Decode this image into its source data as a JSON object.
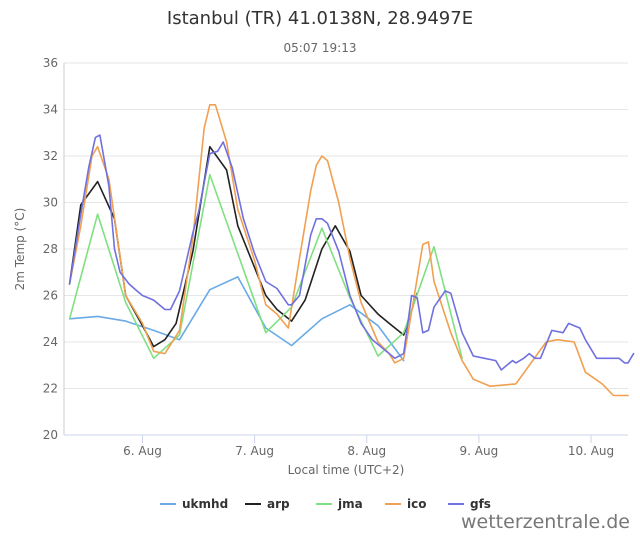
{
  "chart_data": {
    "type": "line",
    "title": "Istanbul (TR) 41.0138N, 28.9497E",
    "subtitle": "05:07 19:13",
    "xlabel": "Local time (UTC+2)",
    "ylabel": "2m Temp (°C)",
    "ylim": [
      20,
      36
    ],
    "yticks": [
      20,
      22,
      24,
      26,
      28,
      30,
      32,
      34,
      36
    ],
    "xlim_days": [
      5.3,
      10.33
    ],
    "xticks": [
      {
        "day": 6,
        "label": "6. Aug"
      },
      {
        "day": 7,
        "label": "7. Aug"
      },
      {
        "day": 8,
        "label": "8. Aug"
      },
      {
        "day": 9,
        "label": "9. Aug"
      },
      {
        "day": 10,
        "label": "10. Aug"
      }
    ],
    "grid": "horizontal",
    "legend": "bottom",
    "watermark": "wetterzentrale.de",
    "series": [
      {
        "name": "ukmhd",
        "color": "#6aaae6",
        "points": [
          [
            5.35,
            25.0
          ],
          [
            5.6,
            25.1
          ],
          [
            5.85,
            24.9
          ],
          [
            6.1,
            24.5
          ],
          [
            6.33,
            24.1
          ],
          [
            6.6,
            26.25
          ],
          [
            6.85,
            26.8
          ],
          [
            7.1,
            24.6
          ],
          [
            7.33,
            23.85
          ],
          [
            7.6,
            25.0
          ],
          [
            7.85,
            25.6
          ],
          [
            8.1,
            24.7
          ],
          [
            8.33,
            23.2
          ]
        ]
      },
      {
        "name": "arp",
        "color": "#222222",
        "points": [
          [
            5.35,
            26.5
          ],
          [
            5.45,
            29.9
          ],
          [
            5.6,
            30.9
          ],
          [
            5.75,
            29.3
          ],
          [
            5.85,
            26.0
          ],
          [
            6.0,
            24.7
          ],
          [
            6.1,
            23.8
          ],
          [
            6.2,
            24.1
          ],
          [
            6.3,
            24.8
          ],
          [
            6.45,
            27.9
          ],
          [
            6.6,
            32.4
          ],
          [
            6.75,
            31.4
          ],
          [
            6.85,
            29.0
          ],
          [
            7.0,
            27.2
          ],
          [
            7.1,
            26.0
          ],
          [
            7.2,
            25.4
          ],
          [
            7.33,
            24.9
          ],
          [
            7.45,
            25.8
          ],
          [
            7.6,
            28.0
          ],
          [
            7.72,
            29.0
          ],
          [
            7.85,
            27.9
          ],
          [
            7.95,
            26.0
          ],
          [
            8.1,
            25.2
          ],
          [
            8.2,
            24.8
          ],
          [
            8.33,
            24.3
          ],
          [
            8.45,
            26.1
          ]
        ]
      },
      {
        "name": "jma",
        "color": "#80e080",
        "points": [
          [
            5.35,
            25.0
          ],
          [
            5.6,
            29.5
          ],
          [
            5.85,
            25.7
          ],
          [
            6.1,
            23.3
          ],
          [
            6.33,
            24.3
          ],
          [
            6.6,
            31.2
          ],
          [
            6.85,
            27.8
          ],
          [
            7.1,
            24.4
          ],
          [
            7.33,
            25.5
          ],
          [
            7.6,
            28.9
          ],
          [
            7.85,
            25.9
          ],
          [
            8.1,
            23.4
          ],
          [
            8.33,
            24.4
          ],
          [
            8.6,
            28.1
          ],
          [
            8.85,
            23.3
          ]
        ]
      },
      {
        "name": "ico",
        "color": "#f0a050",
        "points": [
          [
            5.35,
            26.5
          ],
          [
            5.45,
            29.0
          ],
          [
            5.55,
            32.0
          ],
          [
            5.6,
            32.4
          ],
          [
            5.7,
            31.0
          ],
          [
            5.85,
            26.0
          ],
          [
            6.0,
            24.8
          ],
          [
            6.1,
            23.6
          ],
          [
            6.2,
            23.5
          ],
          [
            6.33,
            24.5
          ],
          [
            6.45,
            28.5
          ],
          [
            6.55,
            33.2
          ],
          [
            6.6,
            34.2
          ],
          [
            6.65,
            34.2
          ],
          [
            6.75,
            32.6
          ],
          [
            6.85,
            29.7
          ],
          [
            7.0,
            27.5
          ],
          [
            7.1,
            25.6
          ],
          [
            7.2,
            25.2
          ],
          [
            7.3,
            24.6
          ],
          [
            7.4,
            27.6
          ],
          [
            7.5,
            30.5
          ],
          [
            7.55,
            31.6
          ],
          [
            7.6,
            32.0
          ],
          [
            7.65,
            31.8
          ],
          [
            7.75,
            30.0
          ],
          [
            7.85,
            27.6
          ],
          [
            7.95,
            25.7
          ],
          [
            8.1,
            24.0
          ],
          [
            8.2,
            23.5
          ],
          [
            8.25,
            23.1
          ],
          [
            8.33,
            23.3
          ],
          [
            8.4,
            25.3
          ],
          [
            8.5,
            28.2
          ],
          [
            8.55,
            28.3
          ],
          [
            8.6,
            26.6
          ],
          [
            8.75,
            24.4
          ],
          [
            8.85,
            23.2
          ],
          [
            8.95,
            22.4
          ],
          [
            9.1,
            22.1
          ],
          [
            9.33,
            22.2
          ],
          [
            9.6,
            24.0
          ],
          [
            9.7,
            24.1
          ],
          [
            9.85,
            24.0
          ],
          [
            9.95,
            22.7
          ],
          [
            10.1,
            22.2
          ],
          [
            10.2,
            21.7
          ],
          [
            10.33,
            21.7
          ]
        ]
      },
      {
        "name": "gfs",
        "color": "#7070e0",
        "points": [
          [
            5.35,
            26.5
          ],
          [
            5.45,
            29.5
          ],
          [
            5.52,
            31.5
          ],
          [
            5.58,
            32.8
          ],
          [
            5.62,
            32.9
          ],
          [
            5.7,
            30.7
          ],
          [
            5.75,
            28.0
          ],
          [
            5.8,
            27.0
          ],
          [
            5.88,
            26.5
          ],
          [
            5.95,
            26.2
          ],
          [
            6.0,
            26.0
          ],
          [
            6.1,
            25.8
          ],
          [
            6.2,
            25.4
          ],
          [
            6.25,
            25.4
          ],
          [
            6.33,
            26.2
          ],
          [
            6.45,
            28.7
          ],
          [
            6.5,
            29.6
          ],
          [
            6.6,
            32.1
          ],
          [
            6.67,
            32.2
          ],
          [
            6.72,
            32.6
          ],
          [
            6.8,
            31.5
          ],
          [
            6.9,
            29.3
          ],
          [
            7.0,
            27.8
          ],
          [
            7.1,
            26.6
          ],
          [
            7.2,
            26.3
          ],
          [
            7.3,
            25.6
          ],
          [
            7.33,
            25.6
          ],
          [
            7.4,
            26.0
          ],
          [
            7.5,
            28.6
          ],
          [
            7.55,
            29.3
          ],
          [
            7.6,
            29.3
          ],
          [
            7.65,
            29.1
          ],
          [
            7.75,
            27.9
          ],
          [
            7.85,
            26.0
          ],
          [
            7.95,
            24.8
          ],
          [
            8.05,
            24.1
          ],
          [
            8.15,
            23.7
          ],
          [
            8.25,
            23.3
          ],
          [
            8.33,
            23.5
          ],
          [
            8.4,
            26.0
          ],
          [
            8.45,
            25.9
          ],
          [
            8.5,
            24.4
          ],
          [
            8.55,
            24.5
          ],
          [
            8.6,
            25.5
          ],
          [
            8.7,
            26.2
          ],
          [
            8.75,
            26.1
          ],
          [
            8.85,
            24.4
          ],
          [
            8.95,
            23.4
          ],
          [
            9.05,
            23.3
          ],
          [
            9.15,
            23.2
          ],
          [
            9.2,
            22.8
          ],
          [
            9.3,
            23.2
          ],
          [
            9.33,
            23.1
          ],
          [
            9.4,
            23.3
          ],
          [
            9.45,
            23.5
          ],
          [
            9.5,
            23.3
          ],
          [
            9.55,
            23.3
          ],
          [
            9.65,
            24.5
          ],
          [
            9.75,
            24.4
          ],
          [
            9.8,
            24.8
          ],
          [
            9.85,
            24.7
          ],
          [
            9.9,
            24.6
          ],
          [
            9.95,
            24.1
          ],
          [
            10.05,
            23.3
          ],
          [
            10.15,
            23.3
          ],
          [
            10.25,
            23.3
          ],
          [
            10.3,
            23.1
          ],
          [
            10.33,
            23.1
          ],
          [
            10.38,
            23.5
          ]
        ]
      }
    ]
  }
}
